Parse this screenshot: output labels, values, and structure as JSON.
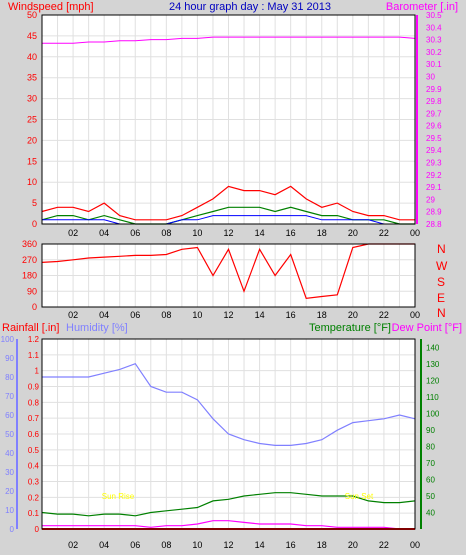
{
  "header": {
    "title": "24 hour graph day : May 31 2013",
    "left_label": "Windspeed [mph]",
    "right_label": "Barometer [.in]"
  },
  "colors": {
    "background": "#d4d4d4",
    "plot_bg": "#ffffff",
    "wind": "#ff0000",
    "gust": "#008000",
    "avgwind": "#0000ff",
    "barometer": "#ff00ff",
    "rain": "#ff0000",
    "humidity": "#8080ff",
    "temperature": "#008000",
    "dewpoint": "#ff00ff",
    "sun": "#ffff00",
    "title": "#0000c0"
  },
  "time_ticks": [
    "02",
    "04",
    "06",
    "08",
    "10",
    "12",
    "14",
    "16",
    "18",
    "20",
    "22",
    "00"
  ],
  "chart_data": [
    {
      "type": "line",
      "panel": "wind",
      "title": "24 hour graph day : May 31 2013",
      "ylabel": "Windspeed [mph]",
      "y2label": "Barometer [.in]",
      "ylim": [
        0,
        50
      ],
      "yticks": [
        "0",
        "5",
        "10",
        "15",
        "20",
        "25",
        "30",
        "35",
        "40",
        "45",
        "50"
      ],
      "y2lim": [
        28.8,
        30.5
      ],
      "y2ticks": [
        "28.8",
        "28.9",
        "29",
        "29.1",
        "29.2",
        "29.3",
        "29.4",
        "29.5",
        "29.6",
        "29.7",
        "29.8",
        "29.9",
        "30",
        "30.1",
        "30.2",
        "30.3",
        "30.4",
        "30.5"
      ],
      "x_hours": [
        0,
        1,
        2,
        3,
        4,
        5,
        6,
        7,
        8,
        9,
        10,
        11,
        12,
        13,
        14,
        15,
        16,
        17,
        18,
        19,
        20,
        21,
        22,
        23,
        24
      ],
      "series": [
        {
          "key": "wind_max",
          "values": [
            3,
            4,
            4,
            3,
            5,
            2,
            1,
            1,
            1,
            2,
            4,
            6,
            9,
            8,
            8,
            7,
            9,
            6,
            4,
            5,
            3,
            2,
            2,
            1,
            1
          ]
        },
        {
          "key": "gust",
          "values": [
            1,
            2,
            2,
            1,
            2,
            1,
            0,
            0,
            0,
            1,
            2,
            3,
            4,
            4,
            4,
            3,
            4,
            3,
            2,
            2,
            1,
            1,
            1,
            0,
            0
          ]
        },
        {
          "key": "avg_wind",
          "values": [
            1,
            1,
            1,
            1,
            1,
            0,
            0,
            0,
            0,
            1,
            1,
            2,
            2,
            2,
            2,
            2,
            2,
            2,
            1,
            1,
            1,
            1,
            0,
            0,
            0
          ]
        },
        {
          "key": "barometer",
          "values": [
            30.27,
            30.27,
            30.27,
            30.28,
            30.28,
            30.29,
            30.29,
            30.3,
            30.3,
            30.31,
            30.31,
            30.32,
            30.32,
            30.32,
            30.32,
            30.32,
            30.32,
            30.32,
            30.32,
            30.32,
            30.32,
            30.32,
            30.32,
            30.32,
            30.31
          ]
        }
      ]
    },
    {
      "type": "line",
      "panel": "wind_direction",
      "ylim": [
        0,
        360
      ],
      "yticks": [
        "0",
        "90",
        "180",
        "270",
        "360"
      ],
      "compass": [
        "N",
        "W",
        "S",
        "E",
        "N"
      ],
      "x_hours": [
        0,
        1,
        2,
        3,
        4,
        5,
        6,
        7,
        8,
        9,
        10,
        11,
        12,
        13,
        14,
        15,
        16,
        17,
        18,
        19,
        20,
        21,
        22,
        23,
        24
      ],
      "series": [
        {
          "key": "direction",
          "values": [
            255,
            260,
            270,
            280,
            285,
            290,
            295,
            295,
            300,
            330,
            340,
            180,
            330,
            90,
            330,
            180,
            300,
            50,
            60,
            70,
            340,
            360,
            360,
            360,
            360
          ]
        }
      ]
    },
    {
      "type": "line",
      "panel": "thermo",
      "ylabel": "Rainfall [.in]",
      "y2label": "Humidity [%]",
      "y3label": "Temperature [°F]",
      "y4label": "Dew Point [°F]",
      "rain_ylim": [
        0,
        1.2
      ],
      "rain_ticks": [
        "0",
        "0.1",
        "0.2",
        "0.3",
        "0.4",
        "0.5",
        "0.6",
        "0.7",
        "0.8",
        "0.9",
        "1",
        "1.1",
        "1.2"
      ],
      "hum_ylim": [
        0,
        100
      ],
      "hum_ticks": [
        "0",
        "10",
        "20",
        "30",
        "40",
        "50",
        "60",
        "70",
        "80",
        "90",
        "100"
      ],
      "temp_ylim": [
        30,
        145
      ],
      "temp_ticks": [
        "40",
        "50",
        "60",
        "70",
        "80",
        "90",
        "100",
        "110",
        "120",
        "130",
        "140"
      ],
      "x_hours": [
        0,
        1,
        2,
        3,
        4,
        5,
        6,
        7,
        8,
        9,
        10,
        11,
        12,
        13,
        14,
        15,
        16,
        17,
        18,
        19,
        20,
        21,
        22,
        23,
        24
      ],
      "series": [
        {
          "key": "humidity",
          "values": [
            80,
            80,
            80,
            80,
            82,
            84,
            87,
            75,
            72,
            72,
            68,
            58,
            50,
            47,
            45,
            44,
            44,
            45,
            47,
            52,
            56,
            57,
            58,
            60,
            58
          ]
        },
        {
          "key": "temperature",
          "values": [
            40,
            39,
            39,
            38,
            39,
            39,
            38,
            40,
            41,
            42,
            43,
            47,
            48,
            50,
            51,
            52,
            52,
            51,
            50,
            50,
            50,
            47,
            46,
            46,
            47
          ]
        },
        {
          "key": "dewpoint",
          "values": [
            32,
            32,
            32,
            32,
            32,
            32,
            32,
            31,
            32,
            32,
            33,
            35,
            35,
            34,
            33,
            33,
            33,
            32,
            32,
            31,
            31,
            31,
            31,
            30,
            30
          ]
        }
      ],
      "annotations": [
        "Sun Rise",
        "Sun Set"
      ]
    }
  ]
}
